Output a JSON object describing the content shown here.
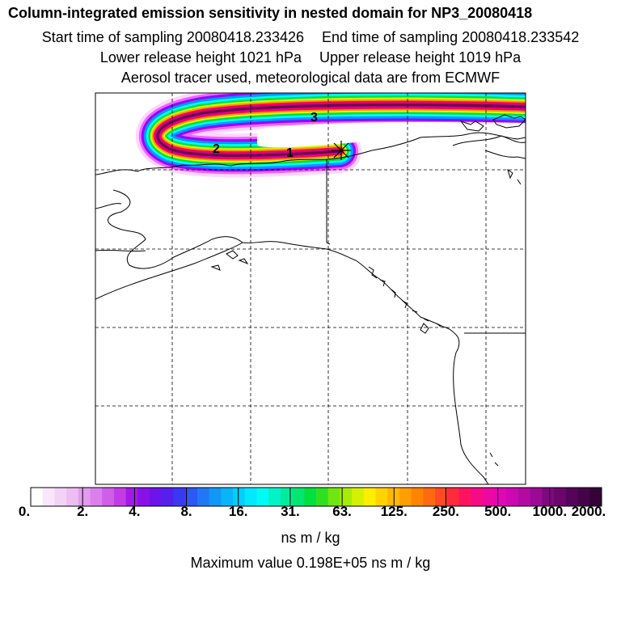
{
  "header": {
    "title": "Column-integrated emission sensitivity in nested domain for NP3_20080418",
    "start_time": "Start time of sampling 20080418.233426",
    "end_time": "End time of sampling 20080418.233542",
    "lower_height": "Lower release height 1021 hPa",
    "upper_height": "Upper release height 1019 hPa",
    "tracer_info": "Aerosol tracer used, meteorological data are from ECMWF"
  },
  "map": {
    "plume_labels": [
      "1",
      "2",
      "3"
    ],
    "release_marker": "star",
    "grid": true,
    "plume_colors": [
      "#ffccff",
      "#ee66ff",
      "#9900ff",
      "#0099ff",
      "#00ffff",
      "#00dd44",
      "#ccff00",
      "#ff9900",
      "#ff0055",
      "#cc0099",
      "#660044"
    ]
  },
  "colorbar": {
    "ticks": [
      "0.",
      "2.",
      "4.",
      "8.",
      "16.",
      "31.",
      "63.",
      "125.",
      "250.",
      "500.",
      "1000.",
      "2000."
    ],
    "segment_colors": [
      "#ffffff",
      "#fae6fb",
      "#f3d2f7",
      "#eebdf4",
      "#e49bef",
      "#dc7fec",
      "#cf5ee8",
      "#c23ce6",
      "#a31ae6",
      "#8a10e8",
      "#6c14ea",
      "#5520ee",
      "#3b38f2",
      "#2c58f4",
      "#1f78f6",
      "#1296f8",
      "#08b4fa",
      "#04cefc",
      "#02e8fd",
      "#00fbf3",
      "#00f2c8",
      "#00ec9c",
      "#00e670",
      "#00e040",
      "#30e020",
      "#70e610",
      "#a6ec06",
      "#d4f200",
      "#ffee00",
      "#ffd200",
      "#ffb800",
      "#ff9e00",
      "#ff8400",
      "#ff6a10",
      "#ff4a24",
      "#ff2a3c",
      "#ff1260",
      "#f80a86",
      "#ee08a2",
      "#e206b8",
      "#cc08b0",
      "#b40aa4",
      "#9a0a94",
      "#800880",
      "#6a066c",
      "#56045a",
      "#440448",
      "#360338"
    ],
    "units": "ns m / kg",
    "max_value": "Maximum value  0.198E+05 ns m / kg"
  }
}
